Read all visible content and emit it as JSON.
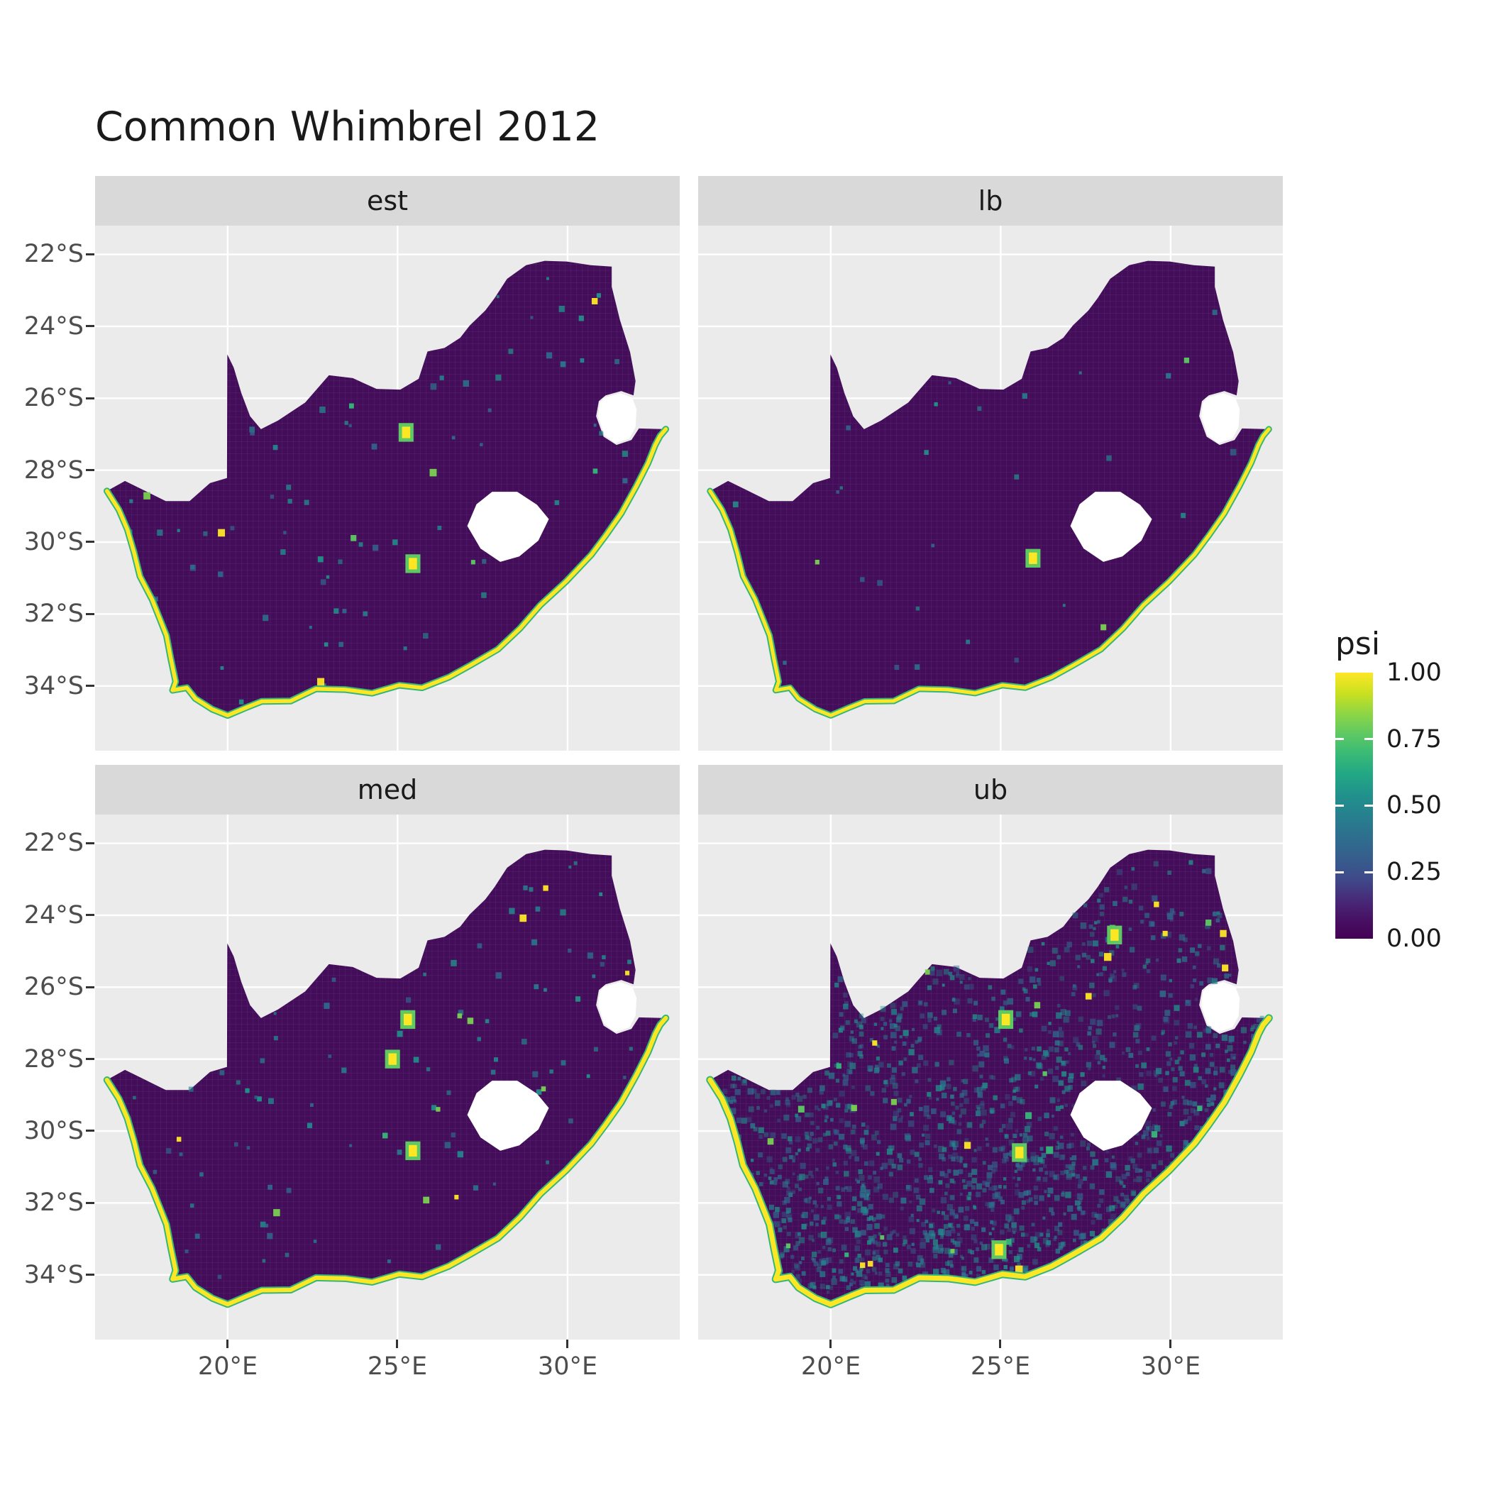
{
  "title": "Common Whimbrel 2012",
  "legend": {
    "title": "psi",
    "entries": [
      {
        "label": "1.00",
        "value": 1.0
      },
      {
        "label": "0.75",
        "value": 0.75
      },
      {
        "label": "0.50",
        "value": 0.5
      },
      {
        "label": "0.25",
        "value": 0.25
      },
      {
        "label": "0.00",
        "value": 0.0
      }
    ]
  },
  "axes": {
    "y_ticks": [
      {
        "label": "22°S",
        "value": 22
      },
      {
        "label": "24°S",
        "value": 24
      },
      {
        "label": "26°S",
        "value": 26
      },
      {
        "label": "28°S",
        "value": 28
      },
      {
        "label": "30°S",
        "value": 30
      },
      {
        "label": "32°S",
        "value": 32
      },
      {
        "label": "34°S",
        "value": 34
      }
    ],
    "x_ticks": [
      {
        "label": "20°E",
        "value": 20
      },
      {
        "label": "25°E",
        "value": 25
      },
      {
        "label": "30°E",
        "value": 30
      }
    ]
  },
  "colors": {
    "panel_bg": "#EBEBEB",
    "strip_bg": "#D9D9D9",
    "grid": "#FFFFFF",
    "map_low": "#440D59",
    "map_texture": "#6E4F97",
    "coast_yellow": "#FDE725",
    "coast_green": "#35B779",
    "hole_fill": "#FFFFFF",
    "axis_text": "#4D4D4D",
    "speck_normal": [
      "#2A788E",
      "#23888E",
      "#31688E",
      "#1F968B"
    ],
    "speck_bright": [
      "#5EC962",
      "#35B779",
      "#FDE725",
      "#7AD151"
    ],
    "viridis": [
      "#440154",
      "#482878",
      "#3E4C8A",
      "#31688E",
      "#26828E",
      "#1F9E89",
      "#35B779",
      "#6ECE58",
      "#B5DE2B",
      "#FDE725"
    ]
  },
  "chart_data": {
    "type": "heatmap",
    "title": "Common Whimbrel 2012",
    "region": "South Africa",
    "fill_variable": "psi",
    "fill_range": [
      0.0,
      1.0
    ],
    "palette": "viridis",
    "legend_position": "right",
    "grid": true,
    "x_axis": {
      "tick_labels": [
        "20°E",
        "25°E",
        "30°E"
      ],
      "range_deg_E": [
        16.1,
        33.3
      ]
    },
    "y_axis": {
      "tick_labels": [
        "22°S",
        "24°S",
        "26°S",
        "28°S",
        "30°S",
        "32°S",
        "34°S"
      ],
      "range_deg_S": [
        21.2,
        35.8
      ]
    },
    "summary": "Four faceted occupancy-probability (psi) raster maps of South Africa. Interior cells are mostly psi ≈ 0 (dark purple); coastline cells are psi ≈ 1 (yellow) with a thin green fringe. Lesotho and Eswatini are blank (no data). The 'ub' facet shows elevated psi (teal speckling) across the southern and eastern interior; 'lb' is the cleanest (lowest) surface.",
    "facets": [
      {
        "id": "est",
        "label": "est",
        "render": {
          "seed": 11,
          "speck_count": 70,
          "bright_count": 9,
          "south_bias": false,
          "coast_width": 5.5,
          "hotspots": [
            [
              25.45,
              30.6
            ],
            [
              25.25,
              26.95
            ]
          ]
        }
      },
      {
        "id": "lb",
        "label": "lb",
        "render": {
          "seed": 23,
          "speck_count": 26,
          "bright_count": 3,
          "south_bias": false,
          "coast_width": 5,
          "hotspots": [
            [
              25.95,
              30.45
            ]
          ]
        }
      },
      {
        "id": "med",
        "label": "med",
        "render": {
          "seed": 37,
          "speck_count": 88,
          "bright_count": 12,
          "south_bias": false,
          "coast_width": 6,
          "hotspots": [
            [
              25.45,
              30.55
            ],
            [
              25.3,
              26.9
            ],
            [
              24.85,
              28.0
            ]
          ]
        }
      },
      {
        "id": "ub",
        "label": "ub",
        "render": {
          "seed": 51,
          "speck_count": 1500,
          "bright_count": 30,
          "south_bias": true,
          "coast_width": 7,
          "hotspots": [
            [
              25.55,
              30.6
            ],
            [
              25.15,
              26.9
            ],
            [
              28.35,
              24.55
            ],
            [
              24.95,
              33.3
            ]
          ]
        }
      }
    ]
  }
}
